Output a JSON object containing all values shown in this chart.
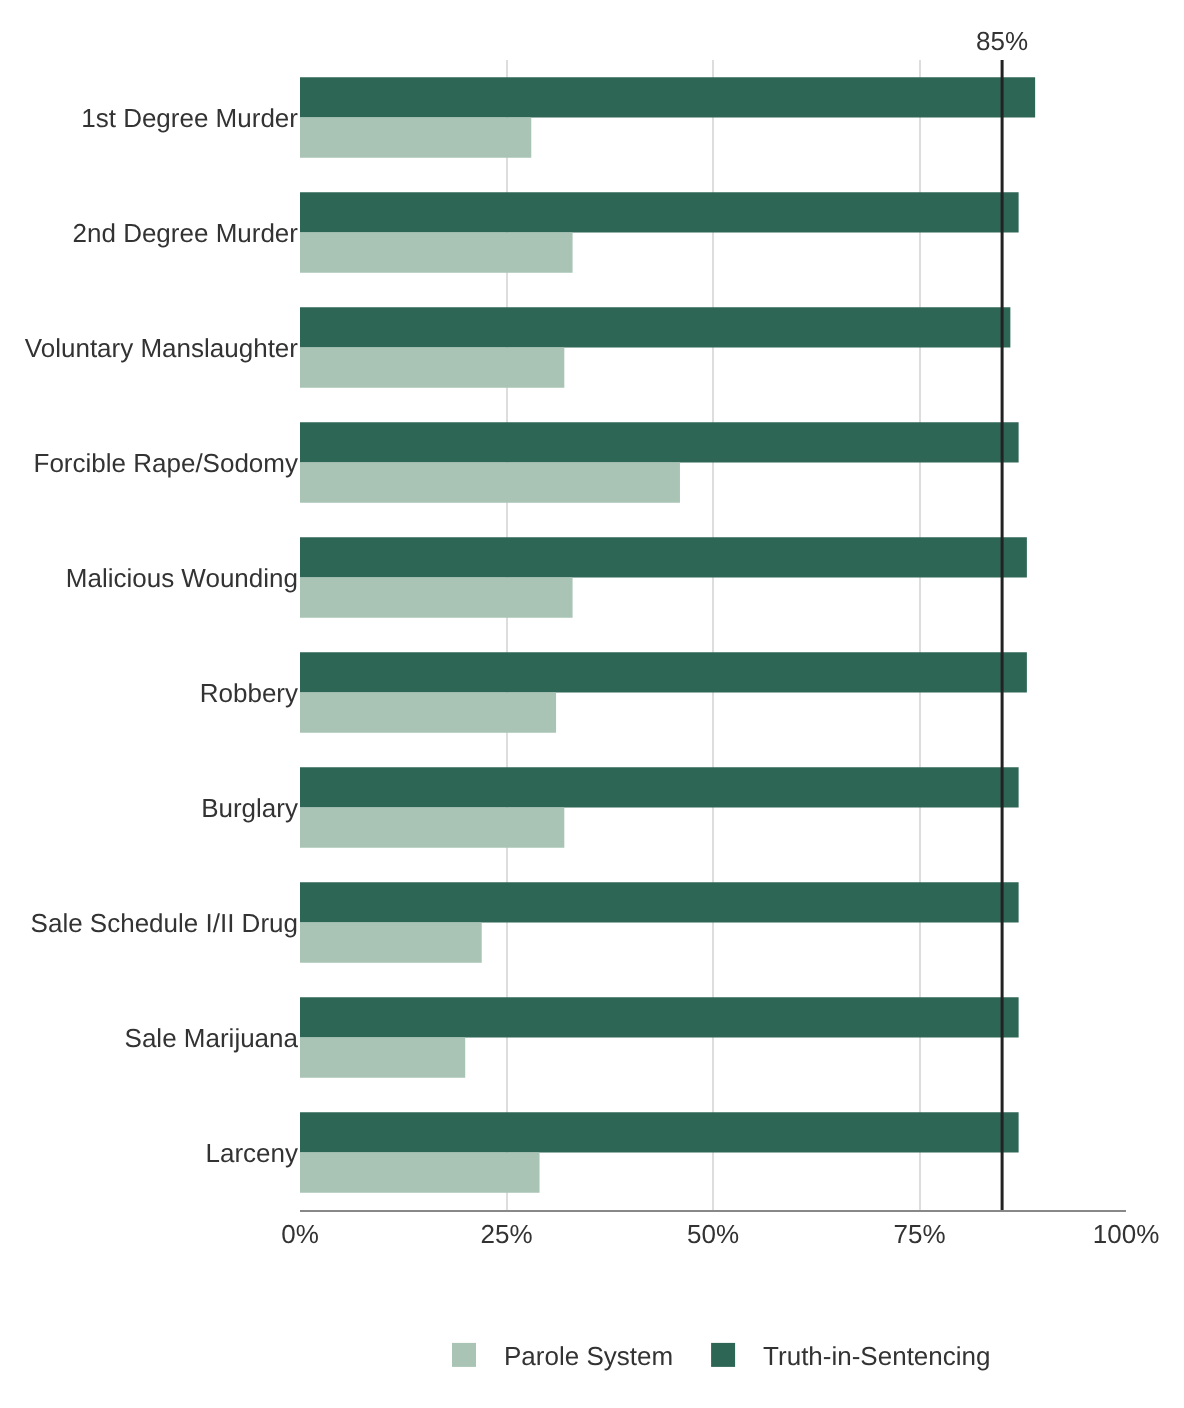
{
  "chart_data": {
    "type": "bar",
    "orientation": "horizontal",
    "categories": [
      "1st Degree Murder",
      "2nd Degree Murder",
      "Voluntary Manslaughter",
      "Forcible Rape/Sodomy",
      "Malicious Wounding",
      "Robbery",
      "Burglary",
      "Sale Schedule I/II Drug",
      "Sale Marijuana",
      "Larceny"
    ],
    "series": [
      {
        "name": "Parole System",
        "color": "#a9c4b5",
        "values": [
          28,
          33,
          32,
          46,
          33,
          31,
          32,
          22,
          20,
          29
        ]
      },
      {
        "name": "Truth-in-Sentencing",
        "color": "#2e6655",
        "values": [
          89,
          87,
          86,
          87,
          88,
          88,
          87,
          87,
          87,
          87
        ]
      }
    ],
    "xlim": [
      0,
      100
    ],
    "xticks": [
      {
        "value": 0,
        "label": "0%"
      },
      {
        "value": 25,
        "label": "25%"
      },
      {
        "value": 50,
        "label": "50%"
      },
      {
        "value": 75,
        "label": "75%"
      },
      {
        "value": 100,
        "label": "100%"
      }
    ],
    "ref_lines": [
      {
        "axis": "x",
        "value": 85,
        "label": "85%",
        "color": "#222222"
      }
    ],
    "grid": "x",
    "legend": "bottom"
  }
}
